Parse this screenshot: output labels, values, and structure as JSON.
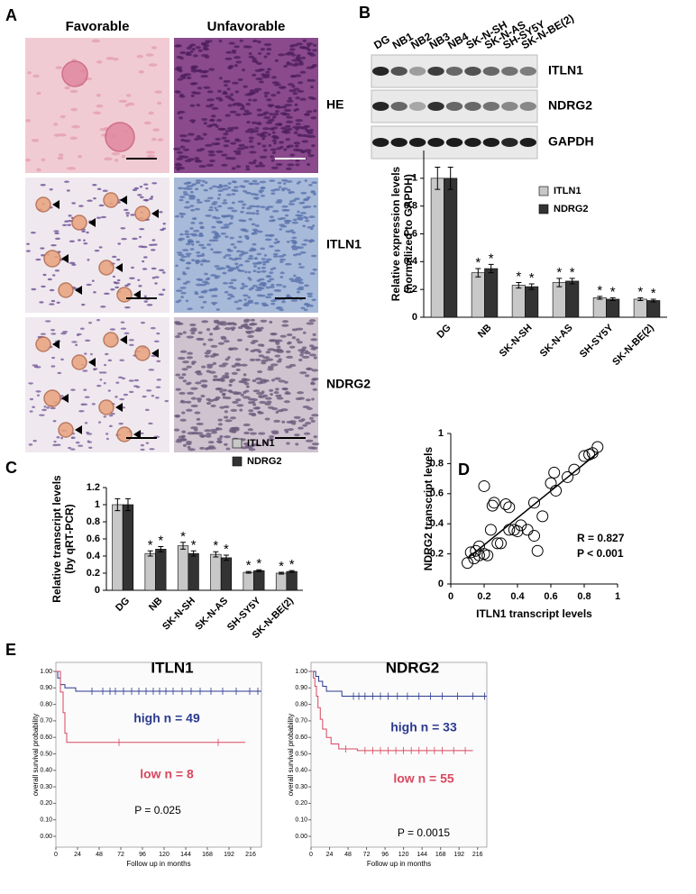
{
  "panel_labels": [
    "A",
    "B",
    "C",
    "D",
    "E"
  ],
  "panel_a": {
    "columns": [
      "Favorable",
      "Unfavorable"
    ],
    "rows": [
      "HE",
      "ITLN1",
      "NDRG2"
    ]
  },
  "blot": {
    "lanes": [
      "DG",
      "NB1",
      "NB2",
      "NB3",
      "NB4",
      "SK-N-SH",
      "SK-N-AS",
      "SH-SY5Y",
      "SK-N-BE(2)"
    ],
    "bands": [
      "ITLN1",
      "NDRG2",
      "GAPDH"
    ]
  },
  "chart_data": [
    {
      "type": "bar",
      "ylabel": [
        "Relative expression levels",
        "(normalized to GAPDH)"
      ],
      "categories": [
        "DG",
        "NB",
        "SK-N-SH",
        "SK-N-AS",
        "SH-SY5Y",
        "SK-N-BE(2)"
      ],
      "ylim": [
        0,
        1.2
      ],
      "yticks": [
        0,
        0.2,
        0.4,
        0.6,
        0.8,
        1
      ],
      "significance_mark": "*",
      "series": [
        {
          "name": "ITLN1",
          "color": "#c8c8c8",
          "values": [
            1,
            0.32,
            0.23,
            0.25,
            0.14,
            0.13
          ],
          "errors": [
            0.08,
            0.03,
            0.02,
            0.03,
            0.01,
            0.01
          ],
          "significant": [
            false,
            true,
            true,
            true,
            true,
            true
          ]
        },
        {
          "name": "NDRG2",
          "color": "#333333",
          "values": [
            1,
            0.35,
            0.22,
            0.26,
            0.13,
            0.12
          ],
          "errors": [
            0.08,
            0.03,
            0.02,
            0.02,
            0.01,
            0.01
          ],
          "significant": [
            false,
            true,
            true,
            true,
            true,
            true
          ]
        }
      ]
    },
    {
      "type": "bar",
      "ylabel": [
        "Relative transcript levels",
        "(by qRT-PCR)"
      ],
      "categories": [
        "DG",
        "NB",
        "SK-N-SH",
        "SK-N-AS",
        "SH-SY5Y",
        "SK-N-BE(2)"
      ],
      "ylim": [
        0,
        1.2
      ],
      "yticks": [
        0,
        0.2,
        0.4,
        0.6,
        0.8,
        1,
        1.2
      ],
      "significance_mark": "*",
      "series": [
        {
          "name": "ITLN1",
          "color": "#c8c8c8",
          "values": [
            1,
            0.43,
            0.52,
            0.42,
            0.21,
            0.2
          ],
          "errors": [
            0.07,
            0.03,
            0.04,
            0.03,
            0.01,
            0.01
          ],
          "significant": [
            false,
            true,
            true,
            true,
            true,
            true
          ]
        },
        {
          "name": "NDRG2",
          "color": "#333333",
          "values": [
            1,
            0.48,
            0.43,
            0.38,
            0.23,
            0.22
          ],
          "errors": [
            0.07,
            0.03,
            0.03,
            0.03,
            0.01,
            0.01
          ],
          "significant": [
            false,
            true,
            true,
            true,
            true,
            true
          ]
        }
      ]
    },
    {
      "type": "scatter",
      "xlabel": "ITLN1 transcript levels",
      "ylabel": "NDRG2 transcript levels",
      "xlim": [
        0,
        1
      ],
      "ylim": [
        0,
        1
      ],
      "xticks": [
        0,
        0.2,
        0.4,
        0.6,
        0.8,
        1
      ],
      "yticks": [
        0,
        0.2,
        0.4,
        0.6,
        0.8,
        1
      ],
      "x": [
        0.1,
        0.12,
        0.14,
        0.15,
        0.17,
        0.17,
        0.2,
        0.22,
        0.2,
        0.24,
        0.25,
        0.26,
        0.28,
        0.3,
        0.33,
        0.35,
        0.35,
        0.38,
        0.4,
        0.42,
        0.46,
        0.5,
        0.5,
        0.52,
        0.55,
        0.6,
        0.62,
        0.63,
        0.7,
        0.74,
        0.8,
        0.83,
        0.85,
        0.88
      ],
      "y": [
        0.14,
        0.21,
        0.17,
        0.22,
        0.25,
        0.19,
        0.2,
        0.19,
        0.65,
        0.36,
        0.52,
        0.54,
        0.27,
        0.27,
        0.53,
        0.51,
        0.36,
        0.36,
        0.35,
        0.39,
        0.36,
        0.32,
        0.54,
        0.22,
        0.45,
        0.67,
        0.74,
        0.62,
        0.71,
        0.76,
        0.85,
        0.86,
        0.87,
        0.91
      ],
      "fit_line": {
        "x": [
          0.1,
          0.88
        ],
        "y": [
          0.17,
          0.87
        ]
      },
      "annotations": [
        "R = 0.827",
        "P < 0.001"
      ]
    },
    {
      "type": "km",
      "title": "ITLN1",
      "xlabel": "Follow up in months",
      "ylabel": "overall survival probability",
      "xlim": [
        0,
        228
      ],
      "ylim": [
        0,
        1
      ],
      "xticks": [
        0,
        24,
        48,
        72,
        96,
        120,
        144,
        168,
        192,
        216
      ],
      "yticks": [
        {
          "value": 0,
          "label": "0.00"
        },
        {
          "value": 0.1,
          "label": "0.10"
        },
        {
          "value": 0.2,
          "label": "0.20"
        },
        {
          "value": 0.3,
          "label": "0.30"
        },
        {
          "value": 0.4,
          "label": "0.40"
        },
        {
          "value": 0.5,
          "label": "0.50"
        },
        {
          "value": 0.6,
          "label": "0.60"
        },
        {
          "value": 0.7,
          "label": "0.70"
        },
        {
          "value": 0.8,
          "label": "0.80"
        },
        {
          "value": 0.9,
          "label": "0.90"
        },
        {
          "value": 1,
          "label": "1.00"
        }
      ],
      "annotation": "P = 0.025",
      "series": [
        {
          "name": "high n = 49",
          "color": "#2b3a8f",
          "x": [
            0,
            2,
            5,
            10,
            22,
            228
          ],
          "values": [
            1,
            0.96,
            0.92,
            0.9,
            0.88,
            0.88
          ],
          "censored": [
            40,
            52,
            60,
            66,
            75,
            84,
            92,
            100,
            108,
            115,
            122,
            130,
            140,
            150,
            160,
            172,
            185,
            200,
            215,
            224
          ]
        },
        {
          "name": "low n = 8",
          "color": "#d9475f",
          "x": [
            0,
            5,
            8,
            10,
            12,
            210
          ],
          "values": [
            1,
            0.875,
            0.75,
            0.625,
            0.57,
            0.57
          ],
          "censored": [
            70,
            180
          ]
        }
      ]
    },
    {
      "type": "km",
      "title": "NDRG2",
      "xlabel": "Follow up in months",
      "ylabel": "overall survival probability",
      "xlim": [
        0,
        228
      ],
      "ylim": [
        0,
        1
      ],
      "xticks": [
        0,
        24,
        48,
        72,
        96,
        120,
        144,
        168,
        192,
        216
      ],
      "yticks": [
        {
          "value": 0,
          "label": "0.00"
        },
        {
          "value": 0.1,
          "label": "0.10"
        },
        {
          "value": 0.2,
          "label": "0.20"
        },
        {
          "value": 0.3,
          "label": "0.30"
        },
        {
          "value": 0.4,
          "label": "0.40"
        },
        {
          "value": 0.5,
          "label": "0.50"
        },
        {
          "value": 0.6,
          "label": "0.60"
        },
        {
          "value": 0.7,
          "label": "0.70"
        },
        {
          "value": 0.8,
          "label": "0.80"
        },
        {
          "value": 0.9,
          "label": "0.90"
        },
        {
          "value": 1,
          "label": "1.00"
        }
      ],
      "annotation": "P = 0.0015",
      "series": [
        {
          "name": "high n = 33",
          "color": "#2b3a8f",
          "x": [
            0,
            6,
            10,
            15,
            20,
            40,
            228
          ],
          "values": [
            1,
            0.97,
            0.94,
            0.91,
            0.88,
            0.85,
            0.85
          ],
          "censored": [
            55,
            62,
            70,
            80,
            90,
            100,
            112,
            125,
            140,
            155,
            170,
            190,
            210,
            225
          ]
        },
        {
          "name": "low n = 55",
          "color": "#d9475f",
          "x": [
            0,
            3,
            5,
            7,
            9,
            12,
            15,
            20,
            26,
            36,
            60,
            210
          ],
          "values": [
            1,
            0.96,
            0.91,
            0.85,
            0.78,
            0.71,
            0.65,
            0.6,
            0.56,
            0.53,
            0.52,
            0.52
          ],
          "censored": [
            45,
            70,
            80,
            90,
            100,
            110,
            120,
            130,
            140,
            150,
            160,
            170,
            185,
            200
          ]
        }
      ]
    }
  ]
}
